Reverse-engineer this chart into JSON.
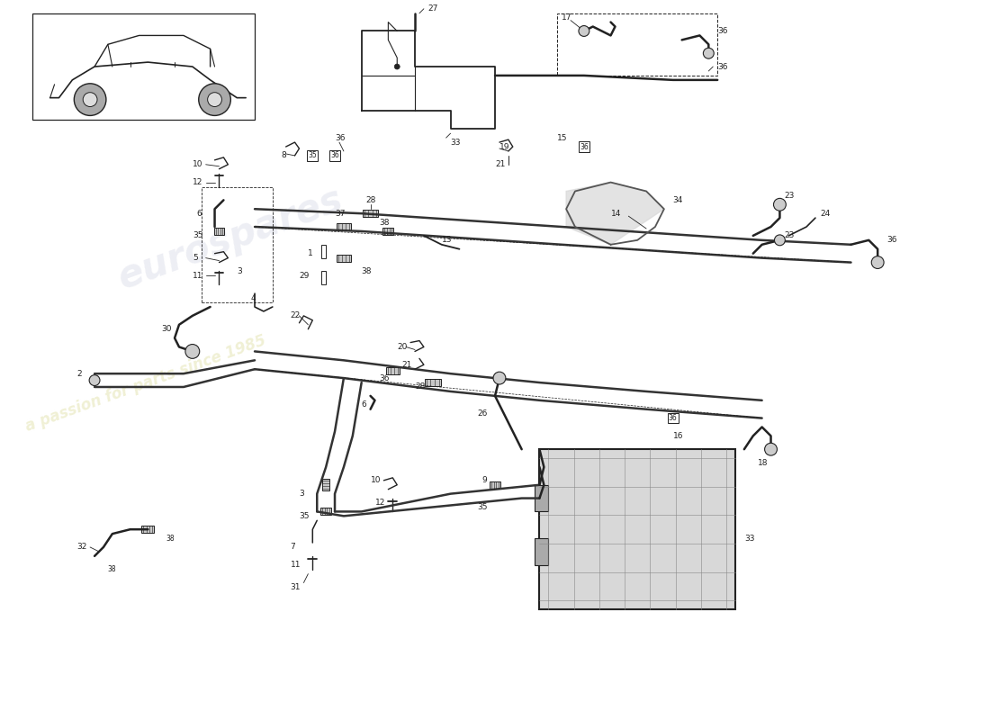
{
  "background_color": "#ffffff",
  "line_color": "#222222",
  "pipe_color": "#333333",
  "watermark1": "eurospares",
  "watermark2": "a passion for parts since 1985",
  "fig_width": 11.0,
  "fig_height": 8.0,
  "dpi": 100,
  "xlim": [
    0,
    110
  ],
  "ylim": [
    0,
    80
  ]
}
